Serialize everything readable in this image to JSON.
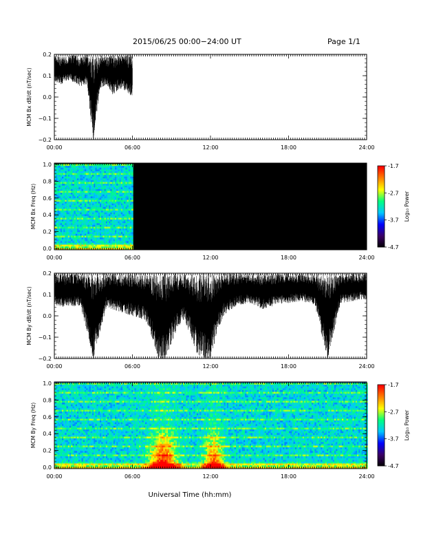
{
  "header": {
    "title": "2015/06/25  00:00−24:00 UT",
    "page": "Page 1/1"
  },
  "xlabel": "Universal Time (hh:mm)",
  "colorbar": {
    "label": "Log₁₀ Power",
    "ticks": [
      "-1.7",
      "-2.7",
      "-3.7",
      "-4.7"
    ],
    "range": [
      -4.7,
      -1.7
    ],
    "colormap": [
      "#000000",
      "#3c0064",
      "#0000ff",
      "#00c8ff",
      "#00ff80",
      "#ffff00",
      "#ff8000",
      "#ff0000"
    ]
  },
  "chart_data": [
    {
      "type": "line",
      "panel": "bx-timeseries",
      "ylabel": "MCM Bx dB/dt (nT/sec)",
      "ylim": [
        -0.2,
        0.2
      ],
      "yticks": [
        "0.2",
        "0.1",
        "0.0",
        "−0.1",
        "−0.2"
      ],
      "xlim": [
        "00:00",
        "24:00"
      ],
      "xticks": [
        "00:00",
        "06:00",
        "12:00",
        "18:00",
        "24:00"
      ],
      "line_color": "#000000",
      "series": [
        {
          "envelope_hours": [
            0.0,
            0.5,
            1.0,
            1.5,
            2.0,
            2.5,
            3.0,
            3.5,
            4.0,
            4.5,
            5.0,
            5.5,
            6.0
          ],
          "upper": [
            0.2,
            0.19,
            0.19,
            0.2,
            0.19,
            0.2,
            0.19,
            0.2,
            0.19,
            0.2,
            0.2,
            0.2,
            0.2
          ],
          "lower": [
            0.07,
            0.06,
            0.08,
            0.07,
            0.05,
            0.06,
            -0.2,
            0.04,
            0.06,
            0.01,
            0.04,
            0.03,
            0.0
          ]
        }
      ],
      "data_end": "06:00"
    },
    {
      "type": "heatmap",
      "panel": "bx-spectrogram",
      "ylabel": "MCM Bx Freq (Hz)",
      "ylim": [
        0.0,
        1.0
      ],
      "yticks": [
        "1.0",
        "0.8",
        "0.6",
        "0.4",
        "0.2",
        "0.0"
      ],
      "xlim": [
        "00:00",
        "24:00"
      ],
      "xticks": [
        "00:00",
        "06:00",
        "12:00",
        "18:00",
        "24:00"
      ],
      "data_end": "06:00",
      "value_range": [
        -4.7,
        -1.7
      ]
    },
    {
      "type": "line",
      "panel": "by-timeseries",
      "ylabel": "MCM By dB/dt (nT/sec)",
      "ylim": [
        -0.2,
        0.2
      ],
      "yticks": [
        "0.2",
        "0.1",
        "0.0",
        "−0.1",
        "−0.2"
      ],
      "xlim": [
        "00:00",
        "24:00"
      ],
      "xticks": [
        "00:00",
        "06:00",
        "12:00",
        "18:00",
        "24:00"
      ],
      "line_color": "#000000",
      "series": [
        {
          "envelope_hours": [
            0,
            1,
            2,
            3,
            4,
            5,
            6,
            7,
            7.5,
            8,
            8.5,
            9,
            9.5,
            10,
            10.5,
            11,
            11.5,
            12,
            12.5,
            13,
            14,
            15,
            16,
            17,
            18,
            19,
            20,
            21,
            22,
            23,
            24
          ],
          "upper": [
            0.2,
            0.2,
            0.2,
            0.2,
            0.2,
            0.2,
            0.2,
            0.2,
            0.2,
            0.2,
            0.2,
            0.2,
            0.2,
            0.2,
            0.2,
            0.2,
            0.2,
            0.2,
            0.2,
            0.2,
            0.2,
            0.2,
            0.2,
            0.2,
            0.2,
            0.2,
            0.2,
            0.2,
            0.2,
            0.2,
            0.2
          ],
          "lower": [
            0.05,
            0.04,
            0.05,
            -0.2,
            0.04,
            0.02,
            0.0,
            -0.02,
            -0.1,
            -0.2,
            -0.2,
            -0.13,
            -0.05,
            -0.02,
            -0.1,
            -0.18,
            -0.2,
            -0.2,
            -0.08,
            0.0,
            0.05,
            0.06,
            0.03,
            0.05,
            0.06,
            0.07,
            0.05,
            -0.2,
            0.06,
            0.07,
            0.08
          ]
        }
      ]
    },
    {
      "type": "heatmap",
      "panel": "by-spectrogram",
      "ylabel": "MCM By Freq (Hz)",
      "ylim": [
        0.0,
        1.0
      ],
      "yticks": [
        "1.0",
        "0.8",
        "0.6",
        "0.4",
        "0.2",
        "0.0"
      ],
      "xlim": [
        "00:00",
        "24:00"
      ],
      "xticks": [
        "00:00",
        "06:00",
        "12:00",
        "18:00",
        "24:00"
      ],
      "value_range": [
        -4.7,
        -1.7
      ]
    }
  ]
}
